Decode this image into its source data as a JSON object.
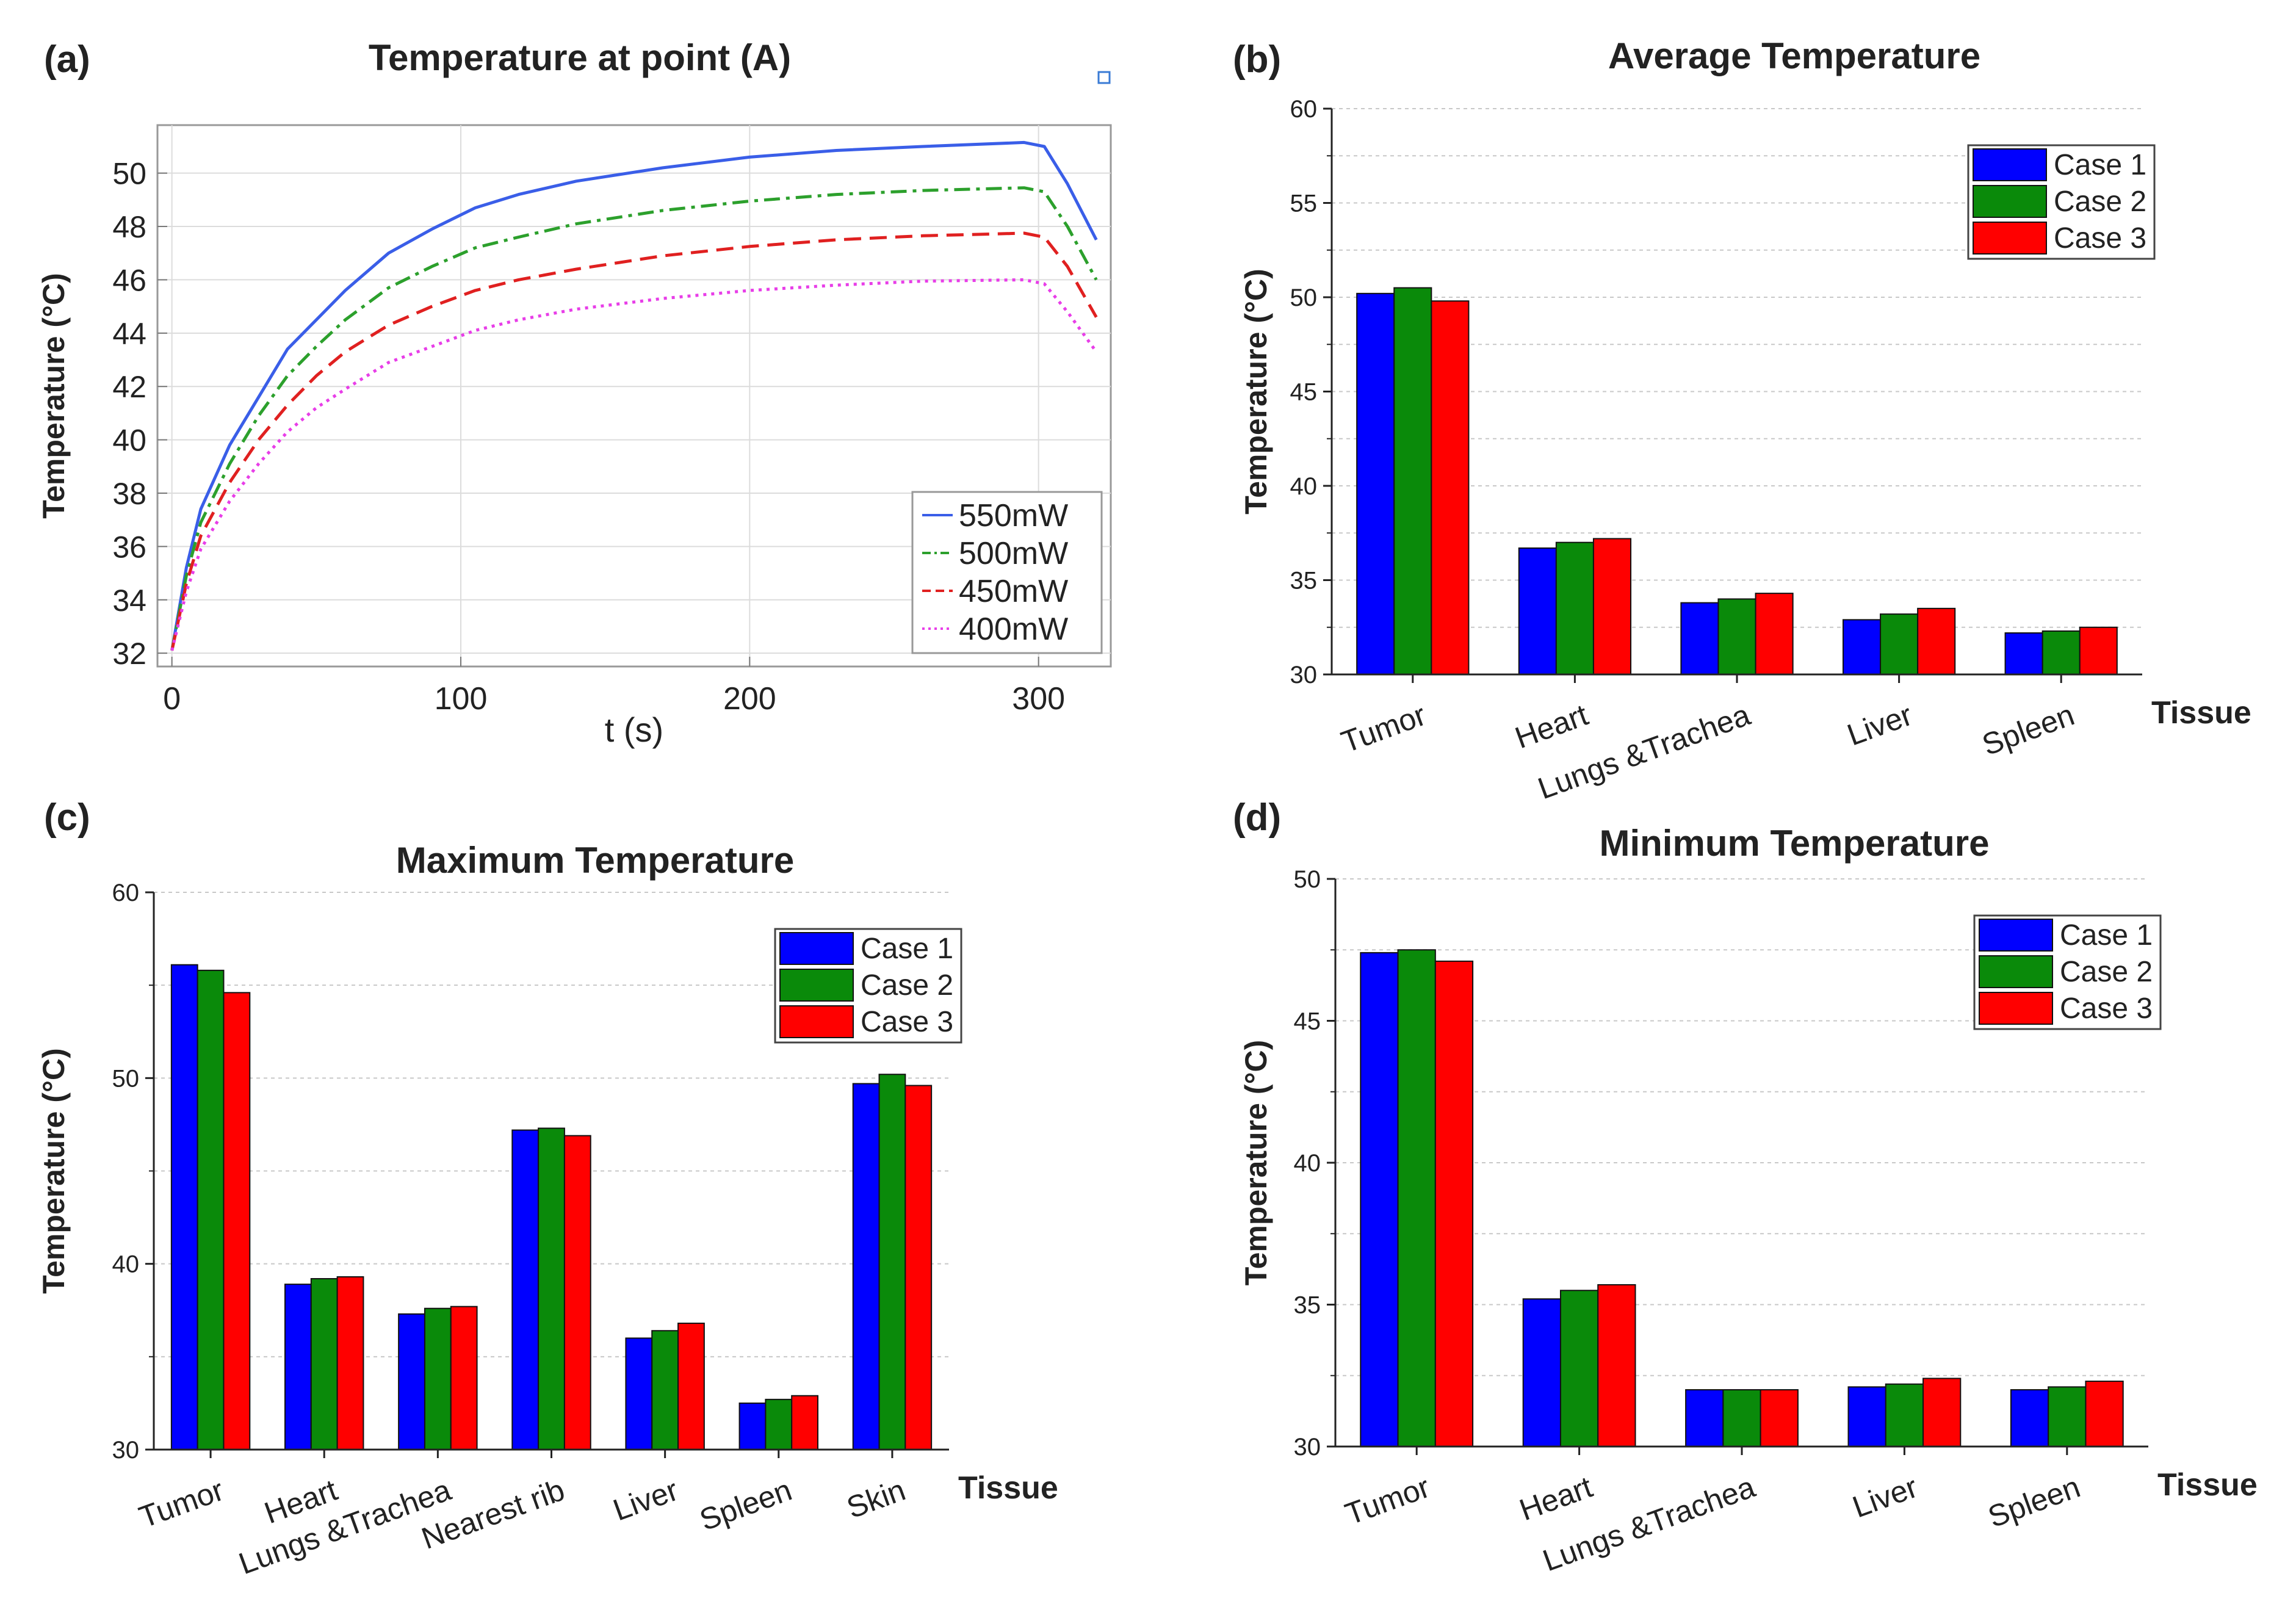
{
  "chart_data": [
    {
      "panel": "(a)",
      "type": "line",
      "title": "Temperature at point (A)",
      "xlabel": "t (s)",
      "ylabel": "Temperature (°C)",
      "xlim": [
        -5,
        325
      ],
      "ylim": [
        31.5,
        51.8
      ],
      "xticks": [
        0,
        100,
        200,
        300
      ],
      "yticks": [
        32,
        34,
        36,
        38,
        40,
        42,
        44,
        46,
        48,
        50
      ],
      "grid": true,
      "legend_position": "bottom-right",
      "x": [
        0,
        5,
        10,
        20,
        30,
        40,
        50,
        60,
        75,
        90,
        105,
        120,
        140,
        170,
        200,
        230,
        260,
        295,
        302,
        310,
        320
      ],
      "series": [
        {
          "name": "550mW",
          "color": "#3a5ee8",
          "dash": "solid",
          "values": [
            32.1,
            35.2,
            37.4,
            39.8,
            41.6,
            43.4,
            44.5,
            45.6,
            47.0,
            47.9,
            48.7,
            49.2,
            49.7,
            50.2,
            50.6,
            50.85,
            51.0,
            51.15,
            51.0,
            49.6,
            47.5
          ]
        },
        {
          "name": "500mW",
          "color": "#2ca02c",
          "dash": "dashdot",
          "values": [
            32.1,
            34.9,
            36.9,
            39.1,
            40.9,
            42.4,
            43.5,
            44.5,
            45.7,
            46.5,
            47.2,
            47.6,
            48.1,
            48.6,
            48.95,
            49.2,
            49.35,
            49.45,
            49.3,
            48.0,
            46.0
          ]
        },
        {
          "name": "450mW",
          "color": "#e02020",
          "dash": "dashed",
          "values": [
            32.1,
            34.6,
            36.4,
            38.4,
            40.0,
            41.3,
            42.4,
            43.3,
            44.3,
            45.0,
            45.6,
            46.0,
            46.4,
            46.9,
            47.25,
            47.5,
            47.65,
            47.75,
            47.6,
            46.5,
            44.6
          ]
        },
        {
          "name": "400mW",
          "color": "#e83ee8",
          "dash": "dotted",
          "values": [
            32.1,
            34.3,
            35.9,
            37.7,
            39.1,
            40.3,
            41.2,
            41.9,
            42.9,
            43.5,
            44.1,
            44.5,
            44.9,
            45.3,
            45.6,
            45.8,
            45.95,
            46.0,
            45.85,
            44.8,
            43.3
          ]
        }
      ]
    },
    {
      "panel": "(b)",
      "type": "bar",
      "title": "Average Temperature",
      "xlabel": "Tissue",
      "ylabel": "Temperature (°C)",
      "ylim": [
        30,
        60
      ],
      "yticks": [
        30,
        35,
        40,
        45,
        50,
        55,
        60
      ],
      "categories": [
        "Tumor",
        "Heart",
        "Lungs &Trachea",
        "Liver",
        "Spleen"
      ],
      "legend_position": "top-right",
      "series": [
        {
          "name": "Case 1",
          "color": "#0000ff",
          "values": [
            50.2,
            36.7,
            33.8,
            32.9,
            32.2
          ]
        },
        {
          "name": "Case 2",
          "color": "#0a8a0a",
          "values": [
            50.5,
            37.0,
            34.0,
            33.2,
            32.3
          ]
        },
        {
          "name": "Case 3",
          "color": "#ff0000",
          "values": [
            49.8,
            37.2,
            34.3,
            33.5,
            32.5
          ]
        }
      ]
    },
    {
      "panel": "(c)",
      "type": "bar",
      "title": "Maximum Temperature",
      "xlabel": "Tissue",
      "ylabel": "Temperature (°C)",
      "ylim": [
        30,
        60
      ],
      "yticks": [
        30,
        40,
        50,
        60
      ],
      "categories": [
        "Tumor",
        "Heart",
        "Lungs &Trachea",
        "Nearest rib",
        "Liver",
        "Spleen",
        "Skin"
      ],
      "legend_position": "top-right",
      "series": [
        {
          "name": "Case 1",
          "color": "#0000ff",
          "values": [
            56.1,
            38.9,
            37.3,
            47.2,
            36.0,
            32.5,
            49.7
          ]
        },
        {
          "name": "Case 2",
          "color": "#0a8a0a",
          "values": [
            55.8,
            39.2,
            37.6,
            47.3,
            36.4,
            32.7,
            50.2
          ]
        },
        {
          "name": "Case 3",
          "color": "#ff0000",
          "values": [
            54.6,
            39.3,
            37.7,
            46.9,
            36.8,
            32.9,
            49.6
          ]
        }
      ]
    },
    {
      "panel": "(d)",
      "type": "bar",
      "title": "Minimum Temperature",
      "xlabel": "Tissue",
      "ylabel": "Temperature (°C)",
      "ylim": [
        30,
        50
      ],
      "yticks": [
        30,
        35,
        40,
        45,
        50
      ],
      "categories": [
        "Tumor",
        "Heart",
        "Lungs &Trachea",
        "Liver",
        "Spleen"
      ],
      "legend_position": "top-right",
      "series": [
        {
          "name": "Case 1",
          "color": "#0000ff",
          "values": [
            47.4,
            35.2,
            32.0,
            32.1,
            32.0
          ]
        },
        {
          "name": "Case 2",
          "color": "#0a8a0a",
          "values": [
            47.5,
            35.5,
            32.0,
            32.2,
            32.1
          ]
        },
        {
          "name": "Case 3",
          "color": "#ff0000",
          "values": [
            47.1,
            35.7,
            32.0,
            32.4,
            32.3
          ]
        }
      ]
    }
  ]
}
